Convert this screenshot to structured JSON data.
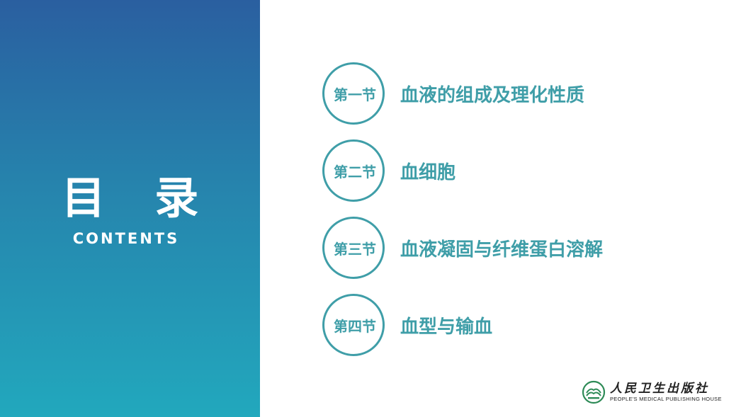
{
  "heading": {
    "title": "目 录",
    "subtitle": "CONTENTS"
  },
  "toc": [
    {
      "number": "第一节",
      "title": "血液的组成及理化性质"
    },
    {
      "number": "第二节",
      "title": "血细胞"
    },
    {
      "number": "第三节",
      "title": "血液凝固与纤维蛋白溶解"
    },
    {
      "number": "第四节",
      "title": "血型与输血"
    }
  ],
  "publisher": {
    "name_cn": "人民卫生出版社",
    "name_en": "PEOPLE'S MEDICAL PUBLISHING HOUSE",
    "logo_icon": "publisher-logo-icon"
  },
  "colors": {
    "accent": "#3f9ea8",
    "panel_top": "#2a5fa0",
    "panel_bottom": "#22a8bd"
  }
}
